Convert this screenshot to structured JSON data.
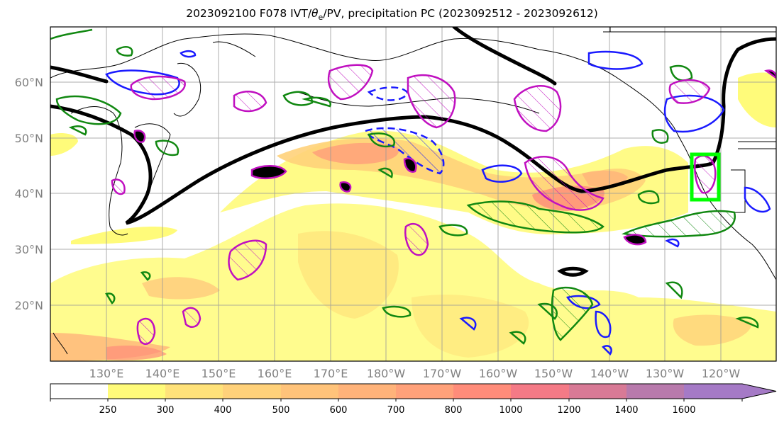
{
  "title": {
    "prefix": "2023092100 F078 IVT/",
    "theta": "θ",
    "theta_sub": "e",
    "suffix": "/PV, precipitation PC (2023092512 - 2023092612)"
  },
  "lat_ticks": [
    "60°N",
    "50°N",
    "40°N",
    "30°N",
    "20°N"
  ],
  "lon_ticks": [
    "130°E",
    "140°E",
    "150°E",
    "160°E",
    "170°E",
    "180°W",
    "170°W",
    "160°W",
    "150°W",
    "140°W",
    "130°W",
    "120°W"
  ],
  "colorbar": {
    "levels": [
      "250",
      "300",
      "400",
      "500",
      "600",
      "700",
      "800",
      "1000",
      "1200",
      "1400",
      "1600"
    ],
    "colors": [
      "#ffffff",
      "#fffb7a",
      "#ffe27a",
      "#ffd17a",
      "#ffc37a",
      "#ffb37a",
      "#ffa17a",
      "#ff8c7a",
      "#f47a86",
      "#d87a96",
      "#b87aac",
      "#a57ac6"
    ]
  },
  "colors": {
    "pv_line": "#000000",
    "theta_e": "#1a1aff",
    "precip_green": "#118811",
    "pv_magenta": "#c010c0",
    "target_box": "#00ff00",
    "grid": "#999999",
    "coast": "#000000"
  },
  "layers": [
    "ivt-filled",
    "pv-2pvu-line",
    "theta-e-contours",
    "precipitation-pc-contours",
    "pv-anomaly-contours",
    "target-box"
  ]
}
